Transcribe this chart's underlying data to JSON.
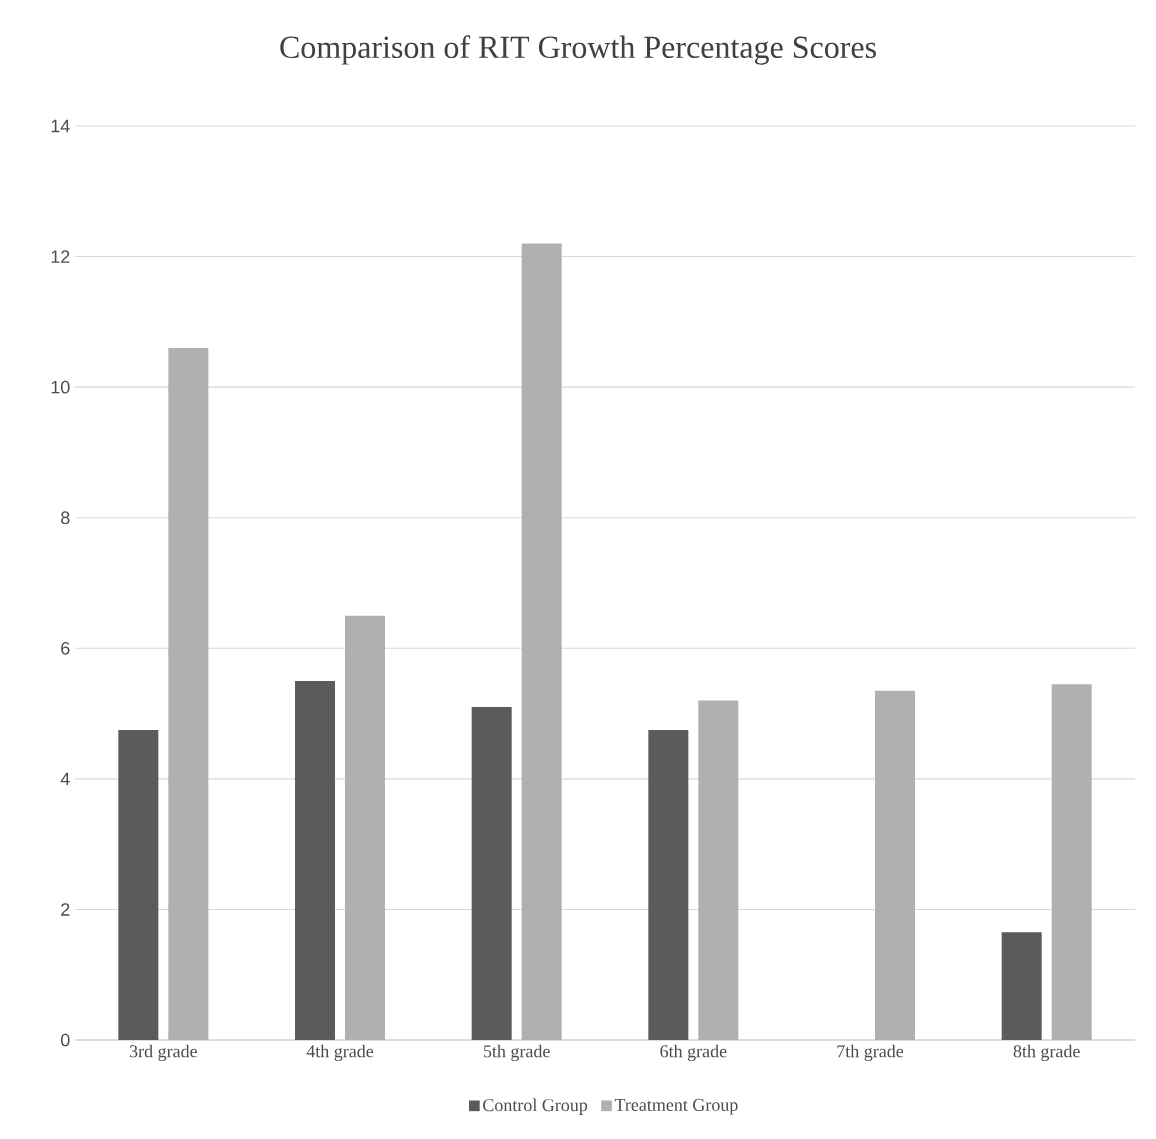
{
  "chart_data": {
    "type": "bar",
    "title": "Comparison of RIT Growth Percentage Scores",
    "categories": [
      "3rd grade",
      "4th grade",
      "5th grade",
      "6th grade",
      "7th grade",
      "8th grade"
    ],
    "series": [
      {
        "name": "Control Group",
        "color": "#5b5b5b",
        "values": [
          4.75,
          5.5,
          5.1,
          4.75,
          null,
          1.65
        ]
      },
      {
        "name": "Treatment Group",
        "color": "#b0b0b0",
        "values": [
          10.6,
          6.5,
          12.2,
          5.2,
          5.35,
          5.45
        ]
      }
    ],
    "ylim": [
      0,
      14
    ],
    "yticks": [
      0,
      2,
      4,
      6,
      8,
      10,
      12,
      14
    ],
    "grid": "y",
    "legend": "bottom"
  }
}
